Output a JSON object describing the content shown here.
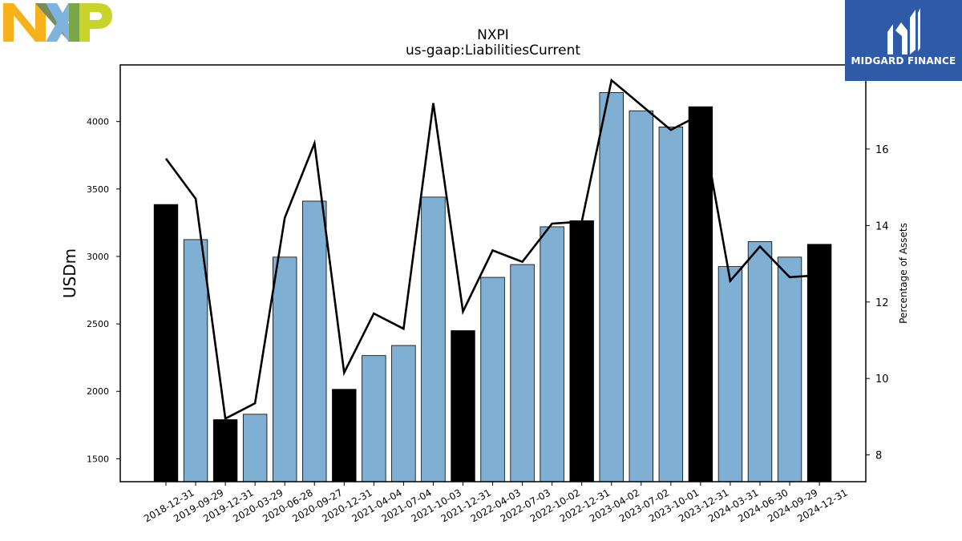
{
  "chart_data": {
    "type": "bar",
    "title": "NXPI",
    "subtitle": "us-gaap:LiabilitiesCurrent",
    "ylabel": "USDm",
    "y2label": "Percentage of Assets",
    "ylim": [
      1330,
      4420
    ],
    "y2lim": [
      7.3,
      18.2
    ],
    "yticks": [
      1500,
      2000,
      2500,
      3000,
      3500,
      4000
    ],
    "y2ticks": [
      8,
      10,
      12,
      14,
      16
    ],
    "categories": [
      "2018-12-31",
      "2019-09-29",
      "2019-12-31",
      "2020-03-29",
      "2020-06-28",
      "2020-09-27",
      "2020-12-31",
      "2021-04-04",
      "2021-07-04",
      "2021-10-03",
      "2021-12-31",
      "2022-04-03",
      "2022-07-03",
      "2022-10-02",
      "2022-12-31",
      "2023-04-02",
      "2023-07-02",
      "2023-10-01",
      "2023-12-31",
      "2024-03-31",
      "2024-06-30",
      "2024-09-29",
      "2024-12-31"
    ],
    "series": [
      {
        "type": "bar",
        "values": [
          3385,
          3125,
          1790,
          1830,
          2995,
          3410,
          2015,
          2265,
          2340,
          3440,
          2450,
          2845,
          2940,
          3220,
          3265,
          4215,
          4080,
          3960,
          4110,
          2925,
          3110,
          2995,
          3090
        ],
        "fiscal_year_end": [
          true,
          false,
          true,
          false,
          false,
          false,
          true,
          false,
          false,
          false,
          true,
          false,
          false,
          false,
          true,
          false,
          false,
          false,
          true,
          false,
          false,
          false,
          true
        ]
      },
      {
        "type": "line",
        "axis": "right",
        "values": [
          15.75,
          14.7,
          8.95,
          9.35,
          14.2,
          16.15,
          10.15,
          11.7,
          11.3,
          17.2,
          11.75,
          13.35,
          13.05,
          14.05,
          14.1,
          17.8,
          17.15,
          16.5,
          16.9,
          12.55,
          13.45,
          12.65,
          12.7
        ]
      }
    ],
    "colors": {
      "bar": "#7fb0d4",
      "bar_year_end": "#000000",
      "line": "#000000"
    }
  },
  "branding": {
    "logo": "NXP",
    "badge": "MIDGARD FINANCE",
    "colors": {
      "n": "#f7b21b",
      "x": "#7fb3de",
      "p": "#c8d42a",
      "badge_bg": "#2f5aa8"
    }
  }
}
